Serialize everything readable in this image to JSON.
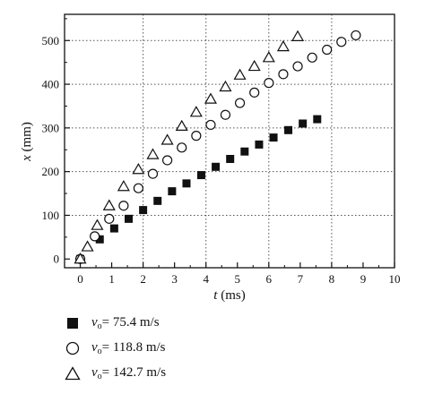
{
  "chart_data": {
    "type": "scatter",
    "xlabel": {
      "symbol": "t",
      "unit": " (ms)"
    },
    "ylabel": {
      "symbol": "x",
      "unit": " (mm)"
    },
    "xlim": [
      -0.5,
      10
    ],
    "ylim": [
      -20,
      560
    ],
    "xticks": [
      0,
      1,
      2,
      3,
      4,
      5,
      6,
      7,
      8,
      9,
      10
    ],
    "yticks": [
      0,
      100,
      200,
      300,
      400,
      500
    ],
    "grid": "dotted",
    "legend_position": "below",
    "series": [
      {
        "name": "75.4 m/s",
        "marker": "square",
        "x": [
          0,
          0.62,
          1.08,
          1.54,
          2.0,
          2.46,
          2.92,
          3.38,
          3.85,
          4.31,
          4.77,
          5.23,
          5.69,
          6.15,
          6.62,
          7.08,
          7.54
        ],
        "y": [
          0,
          45,
          70,
          92,
          112,
          133,
          155,
          173,
          192,
          211,
          229,
          246,
          262,
          278,
          295,
          310,
          320
        ]
      },
      {
        "name": "118.8 m/s",
        "marker": "circle",
        "x": [
          0,
          0.46,
          0.92,
          1.38,
          1.85,
          2.31,
          2.77,
          3.23,
          3.69,
          4.15,
          4.62,
          5.08,
          5.54,
          6.0,
          6.46,
          6.92,
          7.38,
          7.85,
          8.31,
          8.77
        ],
        "y": [
          0,
          52,
          92,
          122,
          162,
          195,
          226,
          255,
          282,
          307,
          330,
          357,
          381,
          403,
          423,
          441,
          461,
          479,
          497,
          512
        ]
      },
      {
        "name": "142.7 m/s",
        "marker": "triangle",
        "x": [
          0,
          0.23,
          0.54,
          0.92,
          1.38,
          1.85,
          2.31,
          2.77,
          3.23,
          3.69,
          4.15,
          4.62,
          5.08,
          5.54,
          6.0,
          6.46,
          6.92
        ],
        "y": [
          0,
          28,
          77,
          122,
          166,
          205,
          239,
          272,
          304,
          336,
          366,
          394,
          421,
          441,
          461,
          486,
          509
        ]
      }
    ]
  },
  "legend": [
    {
      "symbol": "v",
      "sub": "o",
      "text": "= 75.4 m/s"
    },
    {
      "symbol": "v",
      "sub": "o",
      "text": "= 118.8 m/s"
    },
    {
      "symbol": "v",
      "sub": "o",
      "text": "= 142.7 m/s"
    }
  ]
}
